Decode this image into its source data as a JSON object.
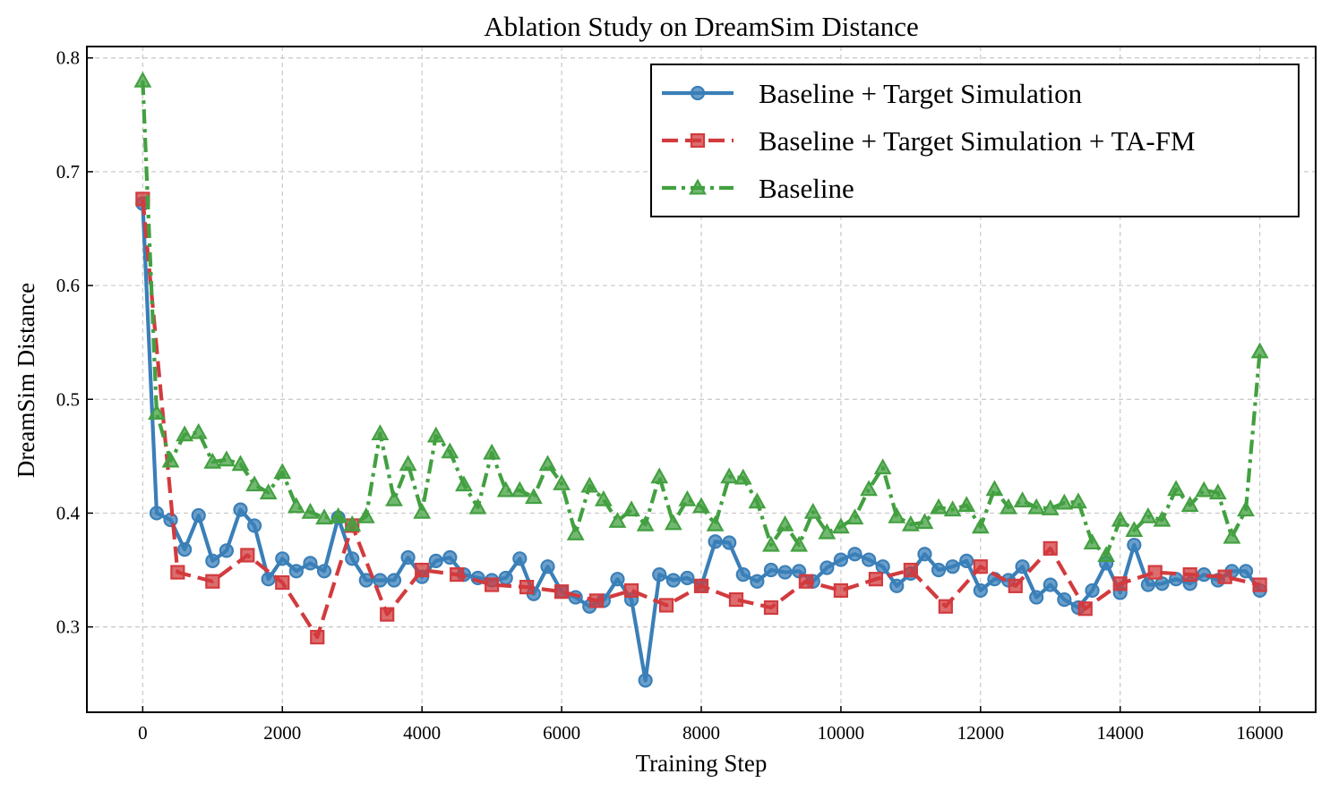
{
  "chart_data": {
    "type": "line",
    "title": "Ablation Study on DreamSim Distance",
    "xlabel": "Training Step",
    "ylabel": "DreamSim Distance",
    "xlim": [
      -800,
      16800
    ],
    "ylim": [
      0.225,
      0.81
    ],
    "xticks": [
      0,
      2000,
      4000,
      6000,
      8000,
      10000,
      12000,
      14000,
      16000
    ],
    "yticks": [
      0.3,
      0.4,
      0.5,
      0.6,
      0.7,
      0.8
    ],
    "ytick_labels": [
      "0.3",
      "0.4",
      "0.5",
      "0.6",
      "0.7",
      "0.8"
    ],
    "grid": true,
    "legend_position": "top-right",
    "series": [
      {
        "name": "Baseline + Target Simulation",
        "color": "#3a7fb8",
        "line_style": "solid",
        "marker": "circle",
        "x": [
          0,
          200,
          400,
          600,
          800,
          1000,
          1200,
          1400,
          1600,
          1800,
          2000,
          2200,
          2400,
          2600,
          2800,
          3000,
          3200,
          3400,
          3600,
          3800,
          4000,
          4200,
          4400,
          4600,
          4800,
          5000,
          5200,
          5400,
          5600,
          5800,
          6000,
          6200,
          6400,
          6600,
          6800,
          7000,
          7200,
          7400,
          7600,
          7800,
          8000,
          8200,
          8400,
          8600,
          8800,
          9000,
          9200,
          9400,
          9600,
          9800,
          10000,
          10200,
          10400,
          10600,
          10800,
          11000,
          11200,
          11400,
          11600,
          11800,
          12000,
          12200,
          12400,
          12600,
          12800,
          13000,
          13200,
          13400,
          13600,
          13800,
          14000,
          14200,
          14400,
          14600,
          14800,
          15000,
          15200,
          15400,
          15600,
          15800,
          16000
        ],
        "y": [
          0.672,
          0.4,
          0.394,
          0.368,
          0.398,
          0.358,
          0.367,
          0.403,
          0.389,
          0.342,
          0.36,
          0.349,
          0.356,
          0.349,
          0.396,
          0.36,
          0.341,
          0.341,
          0.341,
          0.361,
          0.344,
          0.358,
          0.361,
          0.346,
          0.343,
          0.341,
          0.343,
          0.36,
          0.329,
          0.353,
          0.331,
          0.326,
          0.318,
          0.323,
          0.342,
          0.324,
          0.253,
          0.346,
          0.341,
          0.343,
          0.336,
          0.375,
          0.374,
          0.346,
          0.34,
          0.35,
          0.348,
          0.349,
          0.34,
          0.352,
          0.359,
          0.364,
          0.359,
          0.353,
          0.336,
          0.347,
          0.364,
          0.35,
          0.353,
          0.358,
          0.332,
          0.342,
          0.341,
          0.353,
          0.326,
          0.337,
          0.324,
          0.317,
          0.332,
          0.356,
          0.33,
          0.372,
          0.337,
          0.338,
          0.342,
          0.338,
          0.346,
          0.341,
          0.349,
          0.349,
          0.332
        ]
      },
      {
        "name": "Baseline + Target Simulation + TA-FM",
        "color": "#d23b3e",
        "line_style": "dashed",
        "marker": "square",
        "x": [
          0,
          500,
          1000,
          1500,
          2000,
          2500,
          3000,
          3500,
          4000,
          4500,
          5000,
          5500,
          6000,
          6500,
          7000,
          7500,
          8000,
          8500,
          9000,
          9500,
          10000,
          10500,
          11000,
          11500,
          12000,
          12500,
          13000,
          13500,
          14000,
          14500,
          15000,
          15500,
          16000
        ],
        "y": [
          0.676,
          0.348,
          0.34,
          0.363,
          0.339,
          0.291,
          0.389,
          0.311,
          0.35,
          0.346,
          0.337,
          0.335,
          0.331,
          0.323,
          0.332,
          0.319,
          0.336,
          0.324,
          0.317,
          0.34,
          0.332,
          0.342,
          0.35,
          0.318,
          0.353,
          0.336,
          0.369,
          0.316,
          0.338,
          0.348,
          0.346,
          0.344,
          0.337
        ]
      },
      {
        "name": "Baseline",
        "color": "#43a041",
        "line_style": "dashdot",
        "marker": "triangle",
        "x": [
          0,
          200,
          400,
          600,
          800,
          1000,
          1200,
          1400,
          1600,
          1800,
          2000,
          2200,
          2400,
          2600,
          2800,
          3000,
          3200,
          3400,
          3600,
          3800,
          4000,
          4200,
          4400,
          4600,
          4800,
          5000,
          5200,
          5400,
          5600,
          5800,
          6000,
          6200,
          6400,
          6600,
          6800,
          7000,
          7200,
          7400,
          7600,
          7800,
          8000,
          8200,
          8400,
          8600,
          8800,
          9000,
          9200,
          9400,
          9600,
          9800,
          10000,
          10200,
          10400,
          10600,
          10800,
          11000,
          11200,
          11400,
          11600,
          11800,
          12000,
          12200,
          12400,
          12600,
          12800,
          13000,
          13200,
          13400,
          13600,
          13800,
          14000,
          14200,
          14400,
          14600,
          14800,
          15000,
          15200,
          15400,
          15600,
          15800,
          16000
        ],
        "y": [
          0.78,
          0.488,
          0.446,
          0.469,
          0.471,
          0.445,
          0.447,
          0.443,
          0.425,
          0.418,
          0.436,
          0.406,
          0.401,
          0.396,
          0.397,
          0.39,
          0.397,
          0.47,
          0.412,
          0.443,
          0.401,
          0.468,
          0.454,
          0.425,
          0.405,
          0.453,
          0.42,
          0.42,
          0.414,
          0.443,
          0.426,
          0.382,
          0.424,
          0.412,
          0.393,
          0.403,
          0.39,
          0.432,
          0.391,
          0.412,
          0.406,
          0.39,
          0.432,
          0.431,
          0.41,
          0.372,
          0.39,
          0.372,
          0.401,
          0.383,
          0.388,
          0.396,
          0.421,
          0.44,
          0.397,
          0.39,
          0.392,
          0.405,
          0.403,
          0.407,
          0.388,
          0.421,
          0.405,
          0.411,
          0.405,
          0.404,
          0.409,
          0.41,
          0.374,
          0.363,
          0.394,
          0.385,
          0.397,
          0.394,
          0.421,
          0.407,
          0.42,
          0.418,
          0.379,
          0.403,
          0.542
        ]
      }
    ]
  }
}
